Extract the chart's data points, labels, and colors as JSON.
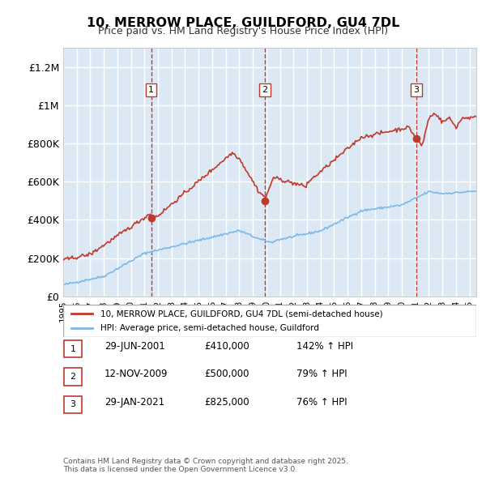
{
  "title": "10, MERROW PLACE, GUILDFORD, GU4 7DL",
  "subtitle": "Price paid vs. HM Land Registry's House Price Index (HPI)",
  "xlabel": "",
  "ylabel": "",
  "ylim": [
    0,
    1300000
  ],
  "yticks": [
    0,
    200000,
    400000,
    600000,
    800000,
    1000000,
    1200000
  ],
  "ytick_labels": [
    "£0",
    "£200K",
    "£400K",
    "£600K",
    "£800K",
    "£1M",
    "£1.2M"
  ],
  "bg_color": "#dce9f5",
  "plot_bg_color": "#dce9f5",
  "grid_color": "#ffffff",
  "line_color_hpi": "#7db8e8",
  "line_color_price": "#c0392b",
  "sale_marker_color": "#c0392b",
  "sale_dates": [
    2001.49,
    2009.87,
    2021.08
  ],
  "sale_prices": [
    410000,
    500000,
    825000
  ],
  "sale_labels": [
    "1",
    "2",
    "3"
  ],
  "vline_color": "#c0392b",
  "legend_label_price": "10, MERROW PLACE, GUILDFORD, GU4 7DL (semi-detached house)",
  "legend_label_hpi": "HPI: Average price, semi-detached house, Guildford",
  "table_rows": [
    {
      "num": "1",
      "date": "29-JUN-2001",
      "price": "£410,000",
      "pct": "142% ↑ HPI"
    },
    {
      "num": "2",
      "date": "12-NOV-2009",
      "price": "£500,000",
      "pct": "79% ↑ HPI"
    },
    {
      "num": "3",
      "date": "29-JAN-2021",
      "price": "£825,000",
      "pct": "76% ↑ HPI"
    }
  ],
  "footer": "Contains HM Land Registry data © Crown copyright and database right 2025.\nThis data is licensed under the Open Government Licence v3.0.",
  "xmin": 1995,
  "xmax": 2025.5
}
